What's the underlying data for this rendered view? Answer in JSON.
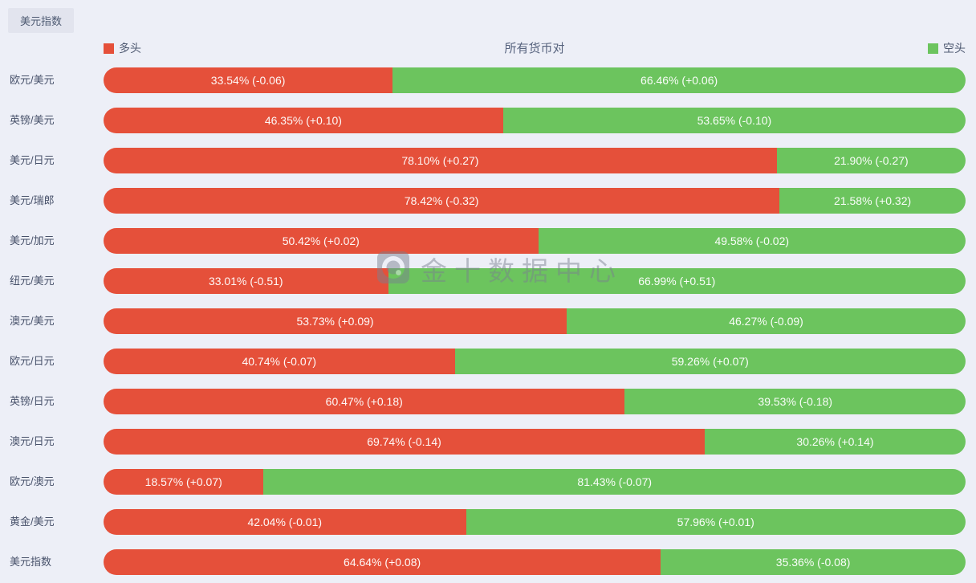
{
  "page": {
    "background": "#edeff7"
  },
  "tab": {
    "label": "美元指数"
  },
  "header": {
    "title": "所有货币对",
    "legend_long": "多头",
    "legend_short": "空头"
  },
  "colors": {
    "long": "#e5503a",
    "short": "#6cc45e",
    "background": "#edeff7",
    "label_text": "#47516a"
  },
  "watermark": {
    "text": "金十数据中心"
  },
  "chart_data": {
    "type": "bar",
    "orientation": "horizontal",
    "stacked": true,
    "unit": "%",
    "title": "所有货币对",
    "legend": [
      "多头",
      "空头"
    ],
    "legend_position": "top",
    "xlim": [
      0,
      100
    ],
    "grid": false,
    "categories": [
      "欧元/美元",
      "英镑/美元",
      "美元/日元",
      "美元/瑞郎",
      "美元/加元",
      "纽元/美元",
      "澳元/美元",
      "欧元/日元",
      "英镑/日元",
      "澳元/日元",
      "欧元/澳元",
      "黄金/美元",
      "美元指数"
    ],
    "series": [
      {
        "name": "多头",
        "color": "#e5503a",
        "values": [
          33.54,
          46.35,
          78.1,
          78.42,
          50.42,
          33.01,
          53.73,
          40.74,
          60.47,
          69.74,
          18.57,
          42.04,
          64.64
        ],
        "changes": [
          "-0.06",
          "+0.10",
          "+0.27",
          "-0.32",
          "+0.02",
          "-0.51",
          "+0.09",
          "-0.07",
          "+0.18",
          "-0.14",
          "+0.07",
          "-0.01",
          "+0.08"
        ]
      },
      {
        "name": "空头",
        "color": "#6cc45e",
        "values": [
          66.46,
          53.65,
          21.9,
          21.58,
          49.58,
          66.99,
          46.27,
          59.26,
          39.53,
          30.26,
          81.43,
          57.96,
          35.36
        ],
        "changes": [
          "+0.06",
          "-0.10",
          "-0.27",
          "+0.32",
          "-0.02",
          "+0.51",
          "-0.09",
          "+0.07",
          "-0.18",
          "+0.14",
          "-0.07",
          "+0.01",
          "-0.08"
        ]
      }
    ],
    "rows": [
      {
        "pair": "欧元/美元",
        "long": {
          "pct": 33.54,
          "change": "-0.06"
        },
        "short": {
          "pct": 66.46,
          "change": "+0.06"
        }
      },
      {
        "pair": "英镑/美元",
        "long": {
          "pct": 46.35,
          "change": "+0.10"
        },
        "short": {
          "pct": 53.65,
          "change": "-0.10"
        }
      },
      {
        "pair": "美元/日元",
        "long": {
          "pct": 78.1,
          "change": "+0.27"
        },
        "short": {
          "pct": 21.9,
          "change": "-0.27"
        }
      },
      {
        "pair": "美元/瑞郎",
        "long": {
          "pct": 78.42,
          "change": "-0.32"
        },
        "short": {
          "pct": 21.58,
          "change": "+0.32"
        }
      },
      {
        "pair": "美元/加元",
        "long": {
          "pct": 50.42,
          "change": "+0.02"
        },
        "short": {
          "pct": 49.58,
          "change": "-0.02"
        }
      },
      {
        "pair": "纽元/美元",
        "long": {
          "pct": 33.01,
          "change": "-0.51"
        },
        "short": {
          "pct": 66.99,
          "change": "+0.51"
        }
      },
      {
        "pair": "澳元/美元",
        "long": {
          "pct": 53.73,
          "change": "+0.09"
        },
        "short": {
          "pct": 46.27,
          "change": "-0.09"
        }
      },
      {
        "pair": "欧元/日元",
        "long": {
          "pct": 40.74,
          "change": "-0.07"
        },
        "short": {
          "pct": 59.26,
          "change": "+0.07"
        }
      },
      {
        "pair": "英镑/日元",
        "long": {
          "pct": 60.47,
          "change": "+0.18"
        },
        "short": {
          "pct": 39.53,
          "change": "-0.18"
        }
      },
      {
        "pair": "澳元/日元",
        "long": {
          "pct": 69.74,
          "change": "-0.14"
        },
        "short": {
          "pct": 30.26,
          "change": "+0.14"
        }
      },
      {
        "pair": "欧元/澳元",
        "long": {
          "pct": 18.57,
          "change": "+0.07"
        },
        "short": {
          "pct": 81.43,
          "change": "-0.07"
        }
      },
      {
        "pair": "黄金/美元",
        "long": {
          "pct": 42.04,
          "change": "-0.01"
        },
        "short": {
          "pct": 57.96,
          "change": "+0.01"
        }
      },
      {
        "pair": "美元指数",
        "long": {
          "pct": 64.64,
          "change": "+0.08"
        },
        "short": {
          "pct": 35.36,
          "change": "-0.08"
        }
      }
    ]
  }
}
